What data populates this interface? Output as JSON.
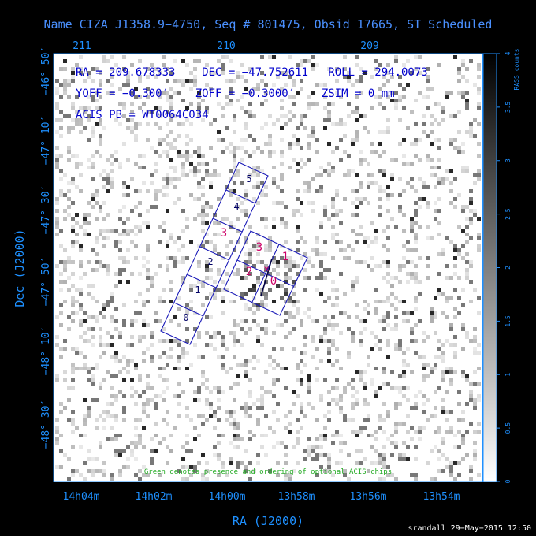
{
  "title": "Name CIZA J1358.9−4750, Seq # 801475, Obsid 17665, ST Scheduled",
  "top_ticks": [
    "211",
    "210",
    "209"
  ],
  "bottom_ticks": [
    "14h04m",
    "14h02m",
    "14h00m",
    "13h58m",
    "13h56m",
    "13h54m"
  ],
  "left_ticks": [
    "−46° 50′",
    "−47° 10′",
    "−47° 30′",
    "−47° 50′",
    "−48° 10′",
    "−48° 30′"
  ],
  "xlabel": "RA (J2000)",
  "ylabel": "Dec (J2000)",
  "info": {
    "line1": "RA = 209.678333    DEC = −47.752611   ROLL = 294.0073",
    "line2": "YOFF = −0.300′    ZOFF = −0.3000′    ZSIM = 0 mm",
    "line3": "ACIS PB = WT0064C034"
  },
  "colorbar": {
    "label": "RASS counts",
    "ticks": [
      "0",
      "0.5",
      "1",
      "1.5",
      "2",
      "2.5",
      "3",
      "3.5",
      "4"
    ]
  },
  "chips_note": "Green denotes presence and ordering of optional ACIS chips",
  "chips_s": [
    "0",
    "1",
    "2",
    "3",
    "4",
    "5"
  ],
  "chips_i": [
    "0",
    "1",
    "2",
    "3"
  ],
  "footer": "srandall 29−May−2015 12:50",
  "colors": {
    "axis": "#1e90ff",
    "title": "#4a90ff",
    "chip_outline": "#1a1ab8",
    "chip_label_black": "#000066",
    "chip_label_magenta": "#cc0066",
    "note": "#22aa22"
  }
}
